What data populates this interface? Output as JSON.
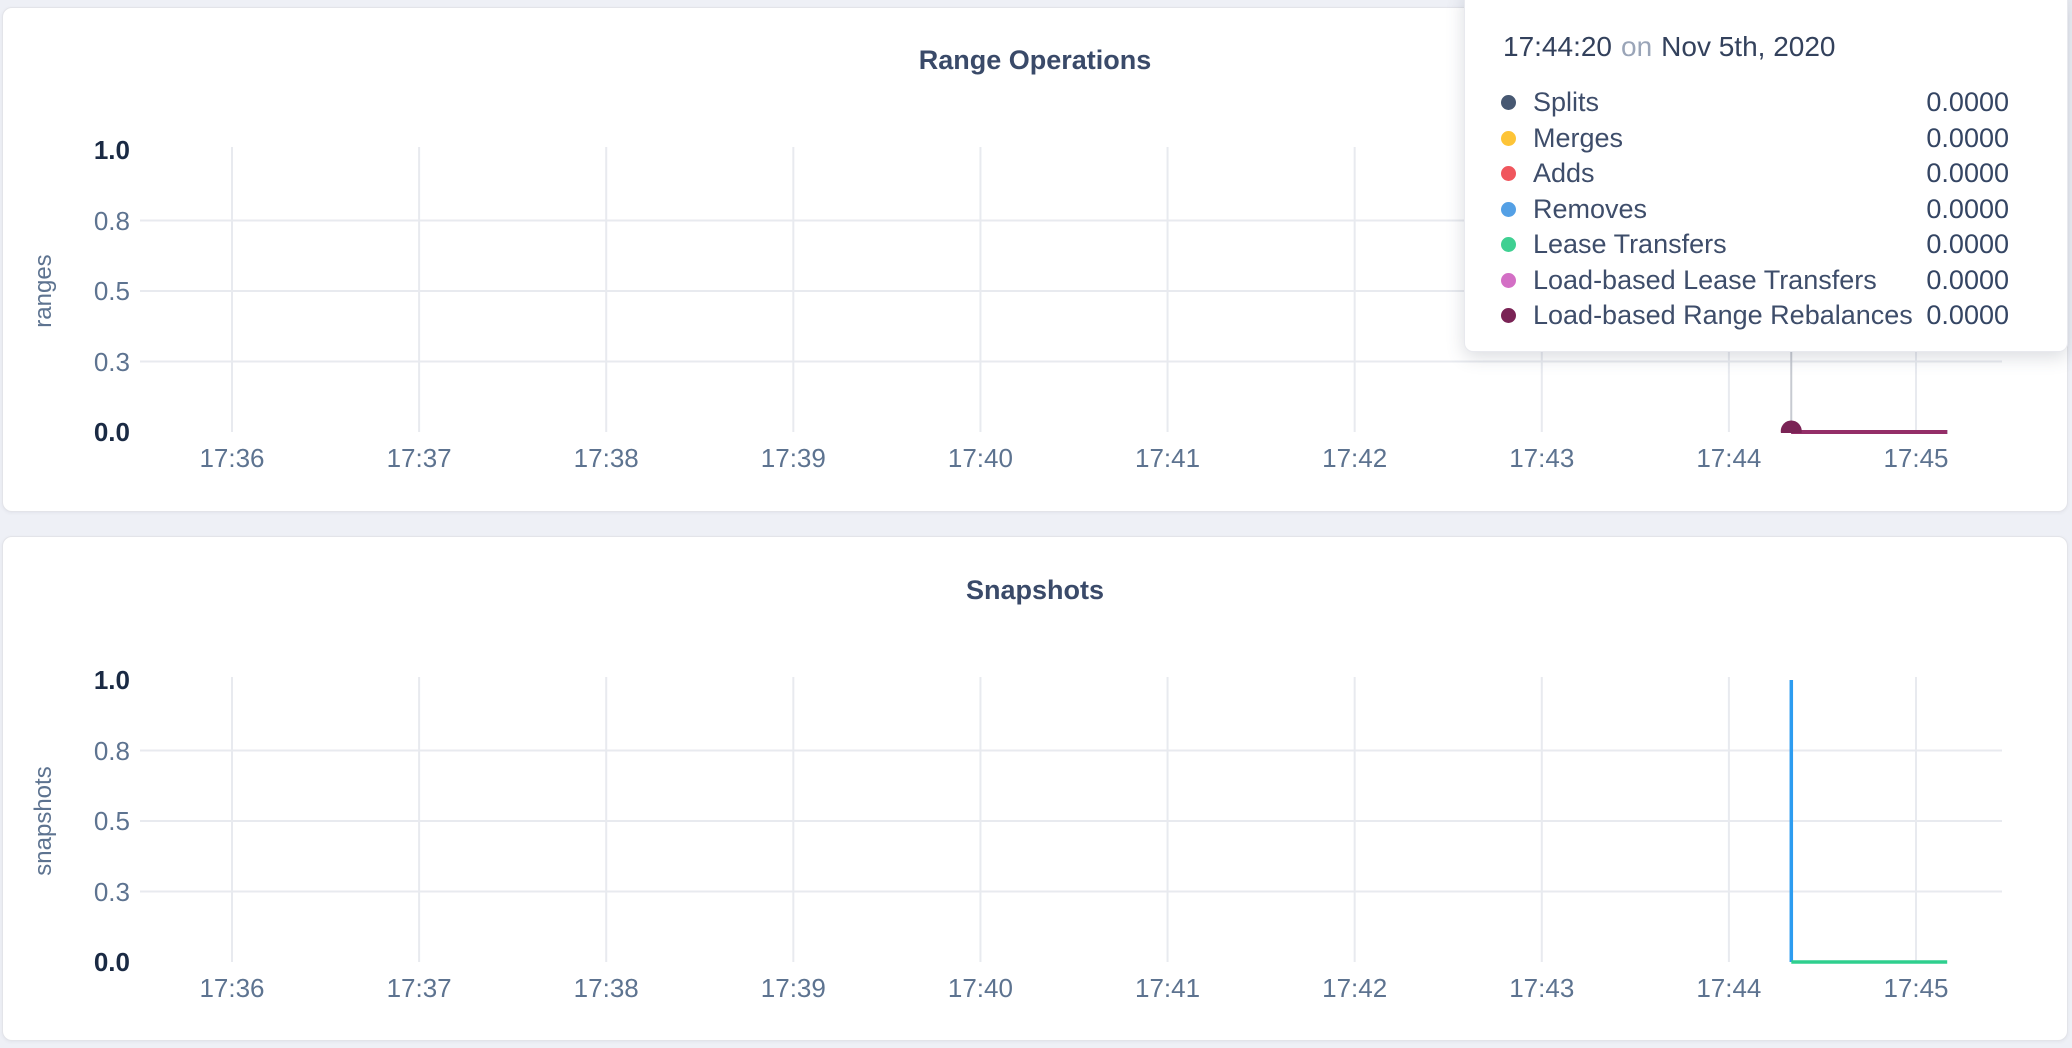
{
  "page": {
    "background_color": "#eef0f6"
  },
  "tooltip": {
    "time": "17:44:20",
    "conjunction": "on",
    "date": "Nov 5th, 2020",
    "rows": [
      {
        "label": "Splits",
        "value": "0.0000",
        "color": "#475872"
      },
      {
        "label": "Merges",
        "value": "0.0000",
        "color": "#fdc437"
      },
      {
        "label": "Adds",
        "value": "0.0000",
        "color": "#f0565d"
      },
      {
        "label": "Removes",
        "value": "0.0000",
        "color": "#54a0e5"
      },
      {
        "label": "Lease Transfers",
        "value": "0.0000",
        "color": "#3fd092"
      },
      {
        "label": "Load-based Lease Transfers",
        "value": "0.0000",
        "color": "#d36fc5"
      },
      {
        "label": "Load-based Range Rebalances",
        "value": "0.0000",
        "color": "#7a2355"
      }
    ]
  },
  "charts": [
    {
      "title": "Range Operations",
      "y_axis_label": "ranges",
      "y_ticks": [
        "1.0",
        "0.8",
        "0.5",
        "0.3",
        "0.0"
      ],
      "x_ticks": [
        "17:36",
        "17:37",
        "17:38",
        "17:39",
        "17:40",
        "17:41",
        "17:42",
        "17:43",
        "17:44",
        "17:45"
      ]
    },
    {
      "title": "Snapshots",
      "y_axis_label": "snapshots",
      "y_ticks": [
        "1.0",
        "0.8",
        "0.5",
        "0.3",
        "0.0"
      ],
      "x_ticks": [
        "17:36",
        "17:37",
        "17:38",
        "17:39",
        "17:40",
        "17:41",
        "17:42",
        "17:43",
        "17:44",
        "17:45"
      ]
    }
  ],
  "chart_data": [
    {
      "type": "line",
      "title": "Range Operations",
      "xlabel": "",
      "ylabel": "ranges",
      "ylim": [
        0,
        1
      ],
      "grid": true,
      "x_ticks": [
        "17:36",
        "17:37",
        "17:38",
        "17:39",
        "17:40",
        "17:41",
        "17:42",
        "17:43",
        "17:44",
        "17:45"
      ],
      "y_tick_values": [
        1.0,
        0.8,
        0.5,
        0.3,
        0.0
      ],
      "series": [
        {
          "name": "Splits",
          "color": "#475872",
          "points": [
            [
              "17:44:20",
              0
            ],
            [
              "17:45:10",
              0
            ]
          ]
        },
        {
          "name": "Merges",
          "color": "#fdc437",
          "points": [
            [
              "17:44:20",
              0
            ],
            [
              "17:45:10",
              0
            ]
          ]
        },
        {
          "name": "Adds",
          "color": "#f0565d",
          "points": [
            [
              "17:44:20",
              0
            ],
            [
              "17:45:10",
              0
            ]
          ]
        },
        {
          "name": "Removes",
          "color": "#54a0e5",
          "points": [
            [
              "17:44:20",
              0
            ],
            [
              "17:45:10",
              0
            ]
          ]
        },
        {
          "name": "Lease Transfers",
          "color": "#3fd092",
          "points": [
            [
              "17:44:20",
              0
            ],
            [
              "17:45:10",
              0
            ]
          ]
        },
        {
          "name": "Load-based Lease Transfers",
          "color": "#d36fc5",
          "points": [
            [
              "17:44:20",
              0
            ],
            [
              "17:45:10",
              0
            ]
          ]
        },
        {
          "name": "Load-based Range Rebalances",
          "color": "#942e68",
          "points": [
            [
              "17:44:20",
              0
            ],
            [
              "17:45:10",
              0
            ]
          ]
        }
      ],
      "hover": {
        "time": "17:44:20",
        "crosshair": true,
        "point_series": "Load-based Range Rebalances",
        "point_value": 0,
        "point_color": "#7a2355"
      }
    },
    {
      "type": "line",
      "title": "Snapshots",
      "xlabel": "",
      "ylabel": "snapshots",
      "ylim": [
        0,
        1
      ],
      "grid": true,
      "x_ticks": [
        "17:36",
        "17:37",
        "17:38",
        "17:39",
        "17:40",
        "17:41",
        "17:42",
        "17:43",
        "17:44",
        "17:45"
      ],
      "y_tick_values": [
        1.0,
        0.8,
        0.5,
        0.3,
        0.0
      ],
      "series": [
        {
          "name": "",
          "color": "#2d9cf0",
          "points": [
            [
              "17:44:20",
              1.0
            ],
            [
              "17:44:20",
              0.0
            ]
          ]
        },
        {
          "name": "",
          "color": "#2fcf8e",
          "points": [
            [
              "17:44:20",
              0.0
            ],
            [
              "17:45:10",
              0.0
            ]
          ]
        }
      ]
    }
  ]
}
